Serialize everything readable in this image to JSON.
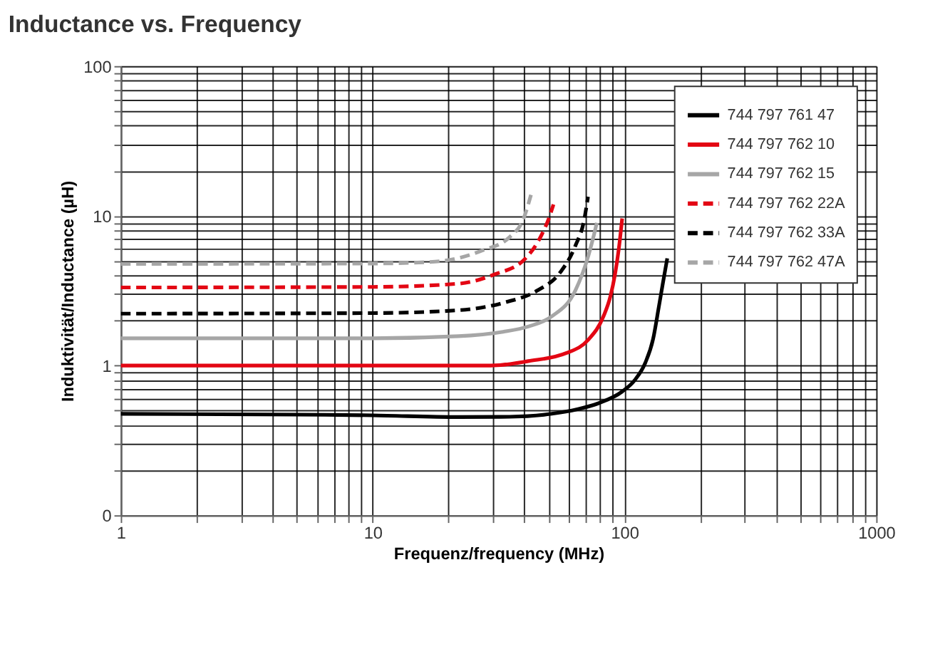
{
  "chart_data": {
    "type": "line",
    "title": "Inductance vs. Frequency",
    "xlabel": "Frequenz/frequency (MHz)",
    "ylabel": "Induktivität/Inductance (µH)",
    "log": "xy",
    "grid": true,
    "legend": "top right",
    "marker": "none",
    "xlim": [
      1,
      1000
    ],
    "ylim": [
      0.1,
      100
    ],
    "xticks": [
      1,
      {
        "value": 2,
        "label": null
      },
      {
        "value": 3,
        "label": null
      },
      {
        "value": 4,
        "label": null
      },
      {
        "value": 5,
        "label": null
      },
      {
        "value": 6,
        "label": null
      },
      {
        "value": 7,
        "label": null
      },
      {
        "value": 8,
        "label": null
      },
      {
        "value": 9,
        "label": null
      },
      10,
      {
        "value": 20,
        "label": null
      },
      {
        "value": 30,
        "label": null
      },
      {
        "value": 40,
        "label": null
      },
      {
        "value": 50,
        "label": null
      },
      {
        "value": 60,
        "label": null
      },
      {
        "value": 70,
        "label": null
      },
      {
        "value": 80,
        "label": null
      },
      {
        "value": 90,
        "label": null
      },
      100,
      {
        "value": 200,
        "label": null
      },
      {
        "value": 300,
        "label": null
      },
      {
        "value": 400,
        "label": null
      },
      {
        "value": 500,
        "label": null
      },
      {
        "value": 600,
        "label": null
      },
      {
        "value": 700,
        "label": null
      },
      {
        "value": 800,
        "label": null
      },
      {
        "value": 900,
        "label": null
      },
      1000
    ],
    "yticks": [
      {
        "value": 0.1,
        "label": "0"
      },
      {
        "value": 0.2,
        "label": null
      },
      {
        "value": 0.3,
        "label": null
      },
      {
        "value": 0.4,
        "label": null
      },
      {
        "value": 0.5,
        "label": null
      },
      {
        "value": 0.6,
        "label": null
      },
      {
        "value": 0.7,
        "label": null
      },
      {
        "value": 0.8,
        "label": null
      },
      {
        "value": 0.9,
        "label": null
      },
      1,
      {
        "value": 2,
        "label": null
      },
      {
        "value": 3,
        "label": null
      },
      {
        "value": 4,
        "label": null
      },
      {
        "value": 5,
        "label": null
      },
      {
        "value": 6,
        "label": null
      },
      {
        "value": 7,
        "label": null
      },
      {
        "value": 8,
        "label": null
      },
      {
        "value": 9,
        "label": null
      },
      10,
      {
        "value": 20,
        "label": null
      },
      {
        "value": 30,
        "label": null
      },
      {
        "value": 40,
        "label": null
      },
      {
        "value": 50,
        "label": null
      },
      {
        "value": 60,
        "label": null
      },
      {
        "value": 70,
        "label": null
      },
      {
        "value": 80,
        "label": null
      },
      {
        "value": 90,
        "label": null
      },
      100
    ],
    "series": [
      {
        "name": "744 797 761 47",
        "color": "#000000",
        "line_style": "solid",
        "x": [
          1,
          5,
          10,
          21.9,
          35,
          51.5,
          65,
          79,
          98,
          110,
          121,
          130,
          137,
          142,
          148
        ],
        "values": [
          0.476,
          0.47,
          0.465,
          0.453,
          0.455,
          0.476,
          0.51,
          0.56,
          0.67,
          0.8,
          1.04,
          1.5,
          2.46,
          3.5,
          5.2
        ]
      },
      {
        "name": "744 797 762 10",
        "color": "#e30613",
        "line_style": "solid",
        "x": [
          1,
          10,
          29.5,
          41.5,
          58.7,
          72,
          82.6,
          88,
          91.8,
          95,
          98
        ],
        "values": [
          1.0,
          1.0,
          1.0,
          1.07,
          1.21,
          1.49,
          2.13,
          2.9,
          4.07,
          6.0,
          9.6
        ]
      },
      {
        "name": "744 797 762 15",
        "color": "#a6a6a6",
        "line_style": "solid",
        "x": [
          1,
          10,
          21.9,
          33,
          41.5,
          51.5,
          63.8,
          72,
          75,
          77.7
        ],
        "values": [
          1.52,
          1.52,
          1.57,
          1.68,
          1.82,
          2.13,
          3.16,
          5.43,
          7.0,
          8.98
        ]
      },
      {
        "name": "744 797 762 22A",
        "color": "#e30613",
        "line_style": "dashed",
        "x": [
          1,
          10,
          21.9,
          30.6,
          39.8,
          47,
          50,
          52.3
        ],
        "values": [
          3.32,
          3.35,
          3.52,
          4.07,
          5.05,
          7.5,
          9.5,
          11.9
        ]
      },
      {
        "name": "744 797 762 33A",
        "color": "#000000",
        "line_style": "dashed",
        "x": [
          1,
          10,
          21.9,
          33.6,
          45,
          55.7,
          63.8,
          69.4,
          71.7
        ],
        "values": [
          2.22,
          2.24,
          2.34,
          2.64,
          3.16,
          4.2,
          6.27,
          9.6,
          13.4
        ]
      },
      {
        "name": "744 797 762 47A",
        "color": "#a6a6a6",
        "line_style": "dashed",
        "x": [
          1,
          10,
          17.7,
          27,
          35,
          39.8,
          43.1
        ],
        "values": [
          4.77,
          4.8,
          4.94,
          5.83,
          7.2,
          9.6,
          14.9
        ]
      }
    ]
  }
}
